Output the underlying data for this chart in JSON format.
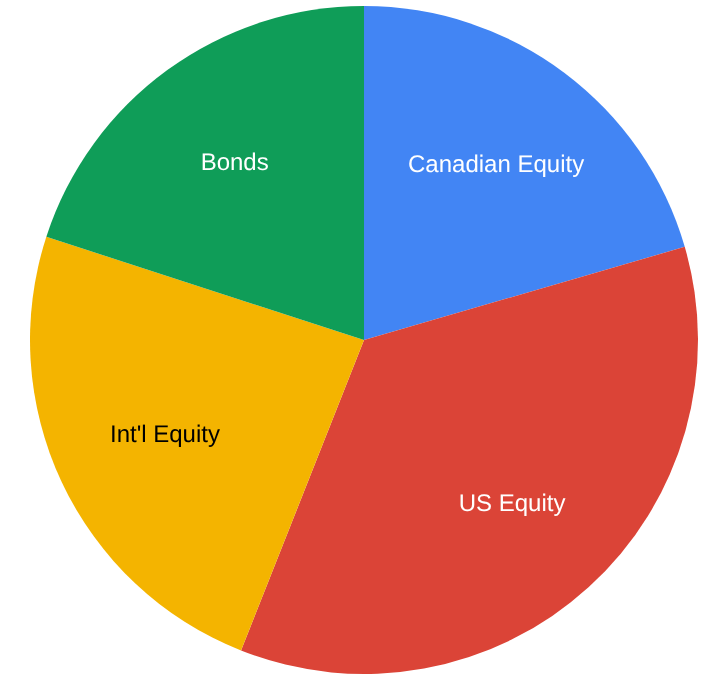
{
  "chart_data": {
    "type": "pie",
    "categories": [
      "Canadian Equity",
      "US Equity",
      "Int'l Equity",
      "Bonds"
    ],
    "values": [
      20.5,
      35.5,
      24,
      20
    ],
    "colors": [
      "#4285f4",
      "#db4437",
      "#f4b400",
      "#0f9d58"
    ]
  }
}
